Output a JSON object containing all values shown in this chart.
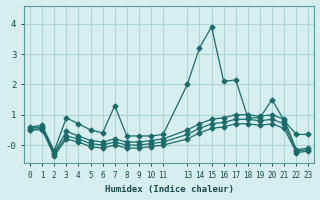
{
  "xlabel": "Humidex (Indice chaleur)",
  "bg_color": "#d6eeee",
  "grid_color": "#b0d4d4",
  "line_color": "#1a6b6b",
  "xtick_positions": [
    0,
    1,
    2,
    3,
    4,
    5,
    6,
    7,
    8,
    9,
    10,
    11,
    13,
    14,
    15,
    16,
    17,
    18,
    19,
    20,
    21,
    22,
    23
  ],
  "xtick_labels": [
    "0",
    "1",
    "2",
    "3",
    "4",
    "5",
    "6",
    "7",
    "8",
    "9",
    "10",
    "11",
    "13",
    "14",
    "15",
    "16",
    "17",
    "18",
    "19",
    "20",
    "21",
    "22",
    "23"
  ],
  "ylim": [
    -0.6,
    4.6
  ],
  "xlim": [
    -0.5,
    23.5
  ],
  "yticks": [
    0,
    1,
    2,
    3,
    4
  ],
  "ytick_labels": [
    "-0",
    "1",
    "2",
    "3",
    "4"
  ],
  "series": [
    {
      "x": [
        0,
        1,
        2,
        3,
        4,
        5,
        6,
        7,
        8,
        9,
        10,
        11,
        13,
        14,
        15,
        16,
        17,
        18,
        19,
        20,
        21,
        22,
        23
      ],
      "y": [
        0.6,
        0.65,
        -0.2,
        0.9,
        0.7,
        0.5,
        0.4,
        1.3,
        0.3,
        0.3,
        0.3,
        0.35,
        2.0,
        3.2,
        3.9,
        2.1,
        2.15,
        0.9,
        0.9,
        1.5,
        0.8,
        0.35,
        0.35
      ]
    },
    {
      "x": [
        0,
        1,
        2,
        3,
        4,
        5,
        6,
        7,
        8,
        9,
        10,
        11,
        13,
        14,
        15,
        16,
        17,
        18,
        19,
        20,
        21,
        22,
        23
      ],
      "y": [
        0.55,
        0.6,
        -0.25,
        0.45,
        0.3,
        0.15,
        0.1,
        0.2,
        0.1,
        0.1,
        0.15,
        0.2,
        0.5,
        0.7,
        0.85,
        0.9,
        1.0,
        1.0,
        0.95,
        1.0,
        0.85,
        -0.15,
        -0.1
      ]
    },
    {
      "x": [
        0,
        1,
        2,
        3,
        4,
        5,
        6,
        7,
        8,
        9,
        10,
        11,
        13,
        14,
        15,
        16,
        17,
        18,
        19,
        20,
        21,
        22,
        23
      ],
      "y": [
        0.5,
        0.55,
        -0.3,
        0.3,
        0.2,
        0.05,
        0.0,
        0.1,
        0.0,
        0.0,
        0.05,
        0.1,
        0.35,
        0.55,
        0.7,
        0.75,
        0.85,
        0.85,
        0.8,
        0.85,
        0.7,
        -0.2,
        -0.15
      ]
    },
    {
      "x": [
        0,
        1,
        2,
        3,
        4,
        5,
        6,
        7,
        8,
        9,
        10,
        11,
        13,
        14,
        15,
        16,
        17,
        18,
        19,
        20,
        21,
        22,
        23
      ],
      "y": [
        0.5,
        0.5,
        -0.35,
        0.2,
        0.1,
        -0.05,
        -0.1,
        0.0,
        -0.1,
        -0.1,
        -0.05,
        0.0,
        0.2,
        0.4,
        0.55,
        0.6,
        0.7,
        0.7,
        0.65,
        0.7,
        0.55,
        -0.25,
        -0.2
      ]
    }
  ]
}
